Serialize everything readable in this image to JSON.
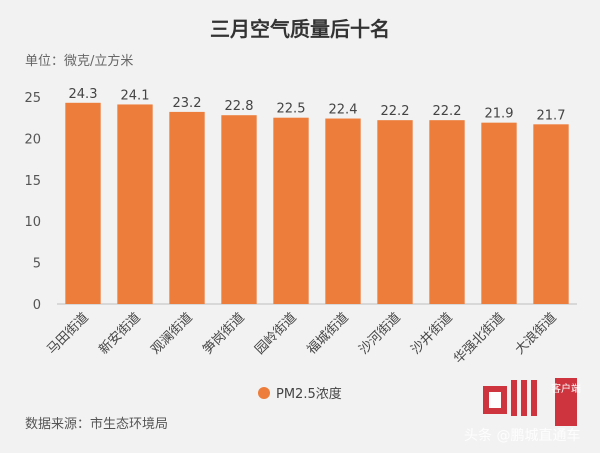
{
  "chart_data": {
    "type": "bar",
    "title": "三月空气质量后十名",
    "unit_label": "单位：微克/立方米",
    "categories": [
      "马田街道",
      "新安街道",
      "观澜街道",
      "笋岗街道",
      "园岭街道",
      "福城街道",
      "沙河街道",
      "沙井街道",
      "华强北街道",
      "大浪街道"
    ],
    "series": [
      {
        "name": "PM2.5浓度",
        "values": [
          24.3,
          24.1,
          23.2,
          22.8,
          22.5,
          22.4,
          22.2,
          22.2,
          21.9,
          21.7
        ],
        "color": "#ed7d3a"
      }
    ],
    "data_labels": [
      "24.3",
      "24.1",
      "23.2",
      "22.8",
      "22.5",
      "22.4",
      "22.2",
      "22.2",
      "21.9",
      "21.7"
    ],
    "ylim": [
      0,
      25
    ],
    "yticks": [
      "0",
      "5",
      "10",
      "15",
      "20",
      "25"
    ],
    "grid": false,
    "legend_position": "bottom"
  },
  "source": "数据来源：市生态环境局",
  "watermark": {
    "logo_text": "圳",
    "badge_text": "客户端",
    "caption": "头条 @鹏城直通车",
    "logo_color": "#c9202b"
  }
}
